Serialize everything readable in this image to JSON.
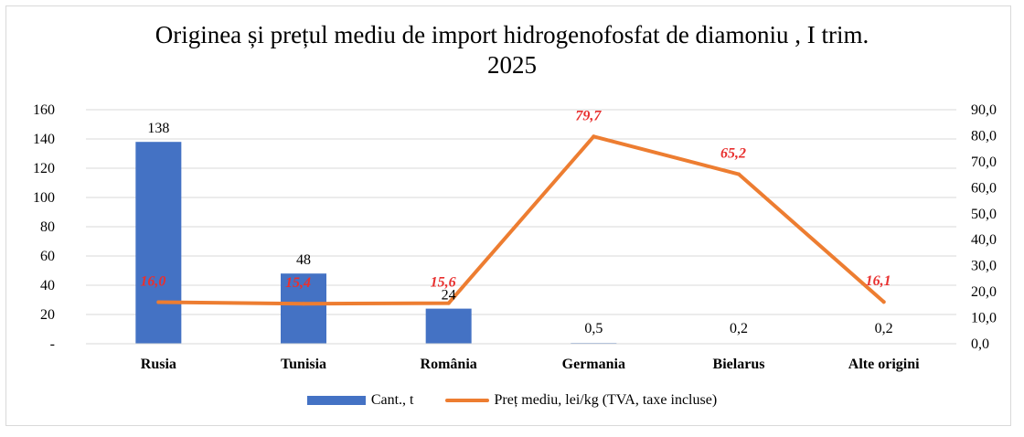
{
  "colors": {
    "bar": "#4472c4",
    "line": "#ed7d31",
    "line_label": "#e8302f",
    "grid": "#d9d9d9"
  },
  "chart_data": {
    "type": "bar",
    "title": "Originea și prețul mediu de import hidrogenofosfat de diamoniu , I trim.",
    "title_line2": "2025",
    "categories": [
      "Rusia",
      "Tunisia",
      "România",
      "Germania",
      "Bielarus",
      "Alte origini"
    ],
    "series": [
      {
        "name": "Cant., t",
        "type": "bar",
        "axis": "left",
        "values": [
          138,
          48,
          24,
          0.5,
          0.2,
          0.2
        ],
        "labels": [
          "138",
          "48",
          "24",
          "0,5",
          "0,2",
          "0,2"
        ]
      },
      {
        "name": "Preț mediu, lei/kg (TVA, taxe incluse)",
        "type": "line",
        "axis": "right",
        "values": [
          16.0,
          15.4,
          15.6,
          79.7,
          65.2,
          16.1
        ],
        "labels": [
          "16,0",
          "15,4",
          "15,6",
          "79,7",
          "65,2",
          "16,1"
        ]
      }
    ],
    "y_left": {
      "min": 0,
      "max": 160,
      "ticks": [
        "-",
        "20",
        "40",
        "60",
        "80",
        "100",
        "120",
        "140",
        "160"
      ]
    },
    "y_right": {
      "min": 0,
      "max": 90,
      "ticks": [
        "0,0",
        "10,0",
        "20,0",
        "30,0",
        "40,0",
        "50,0",
        "60,0",
        "70,0",
        "80,0",
        "90,0"
      ]
    },
    "grid": true,
    "legend_position": "bottom"
  }
}
